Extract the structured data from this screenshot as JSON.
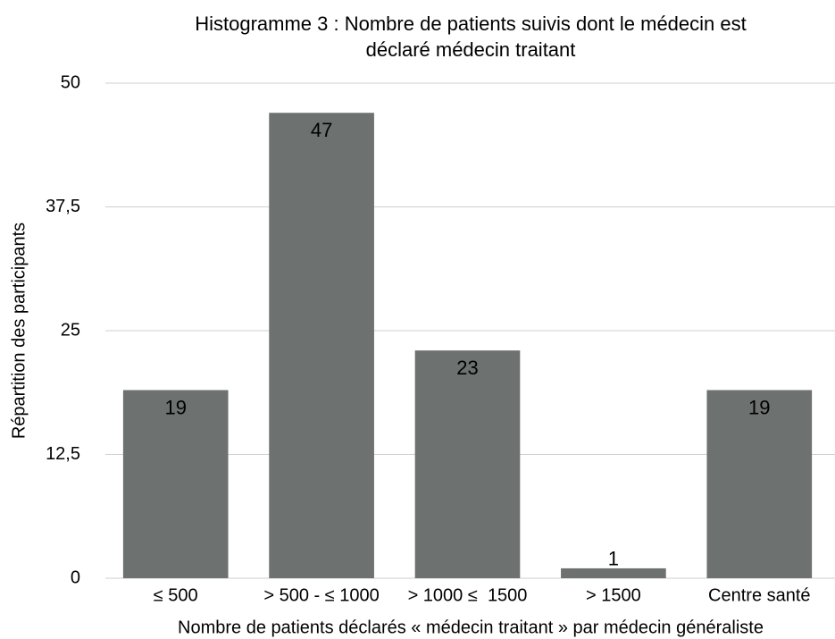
{
  "chart_data": {
    "type": "bar",
    "title": [
      "Histogramme 3 : Nombre de patients suivis dont le médecin est",
      "déclaré médecin traitant"
    ],
    "x_label": "Nombre de patients déclarés « médecin traitant » par médecin généraliste",
    "y_label": "Répartition des participants",
    "categories": [
      "≤ 500",
      "> 500 - ≤ 1000",
      "> 1000 ≤  1500",
      "> 1500",
      "Centre santé"
    ],
    "values": [
      19,
      47,
      23,
      1,
      19
    ],
    "color": "#6d716f",
    "ylim": [
      0,
      50
    ],
    "yticks": [
      0,
      {
        "value": 12.5,
        "label": "12,5"
      },
      25,
      {
        "value": 37.5,
        "label": "37,5"
      },
      50
    ],
    "grid": true
  }
}
